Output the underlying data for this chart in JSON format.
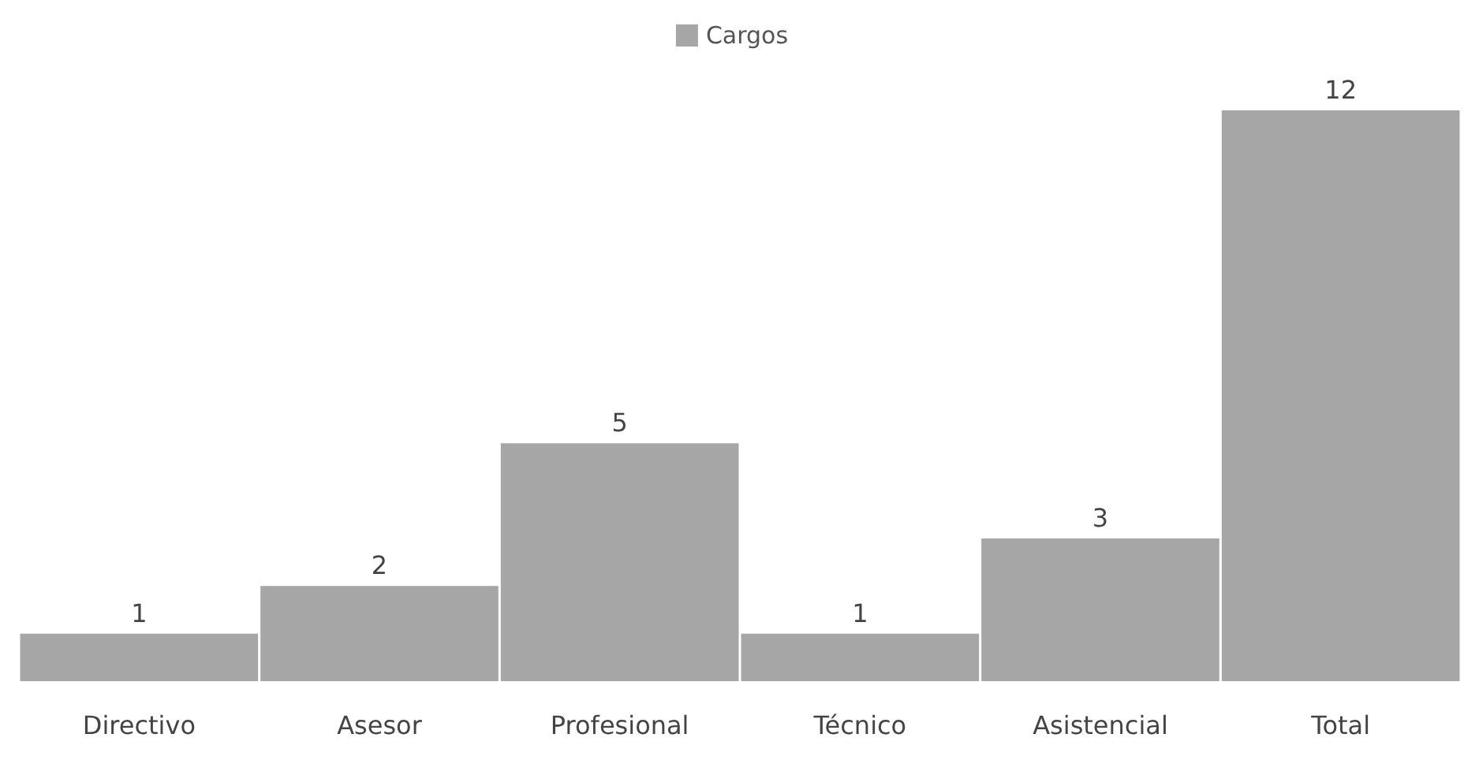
{
  "chart_data": {
    "type": "bar",
    "categories": [
      "Directivo",
      "Asesor",
      "Profesional",
      "Técnico",
      "Asistencial",
      "Total"
    ],
    "series": [
      {
        "name": "Cargos",
        "color": "#a6a6a6",
        "values": [
          1,
          2,
          5,
          1,
          3,
          12
        ]
      }
    ],
    "data_labels": true,
    "legend": "top"
  }
}
